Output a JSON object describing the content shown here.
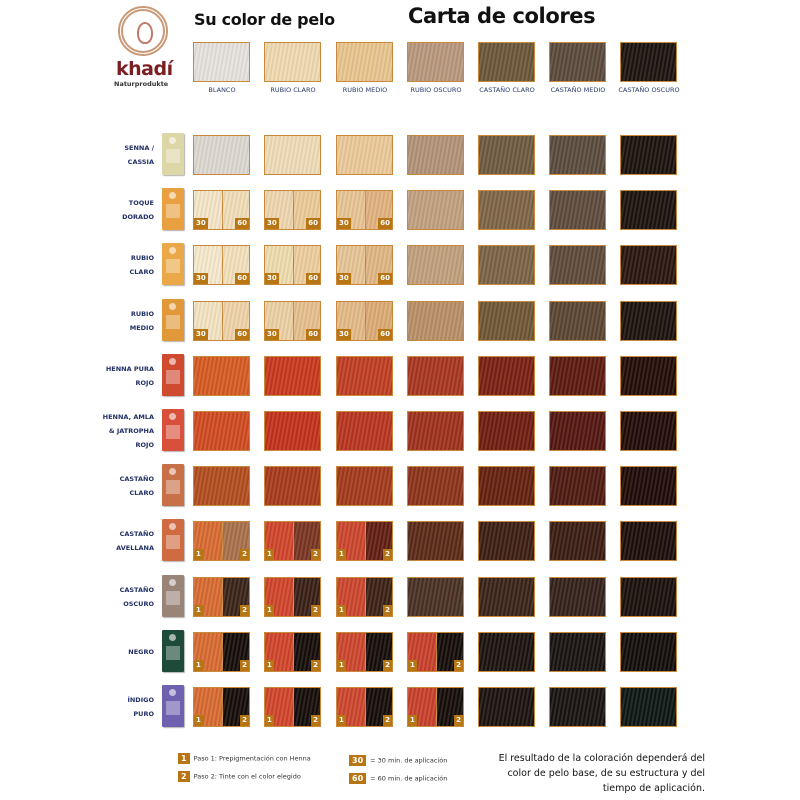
{
  "logo": {
    "brand": "khadí",
    "sub": "Naturprodukte",
    "ring_color": "#c99a78",
    "brand_color": "#7a1f22"
  },
  "titles": {
    "base": "Su color de pelo",
    "main": "Carta de colores"
  },
  "base_colors": [
    {
      "label": "BLANCO",
      "color": "#e6e2dc"
    },
    {
      "label": "RUBIO CLARO",
      "color": "#efd9b0"
    },
    {
      "label": "RUBIO MEDIO",
      "color": "#e9c58e"
    },
    {
      "label": "RUBIO OSCURO",
      "color": "#b8977c"
    },
    {
      "label": "CASTAÑO CLARO",
      "color": "#6b5638"
    },
    {
      "label": "CASTAÑO MEDIO",
      "color": "#5a4a3c"
    },
    {
      "label": "CASTAÑO OSCURO",
      "color": "#1b130e"
    }
  ],
  "rows": [
    {
      "label": [
        "SENNA /",
        "CASSIA"
      ],
      "box": "#ddd6a6",
      "cells": [
        {
          "c": "#ddd8d0"
        },
        {
          "c": "#efdcb8"
        },
        {
          "c": "#ecca9a"
        },
        {
          "c": "#b29278"
        },
        {
          "c": "#6e5a40"
        },
        {
          "c": "#5b4b3e"
        },
        {
          "c": "#1a120d"
        }
      ]
    },
    {
      "label": [
        "TOQUE",
        "DORADO"
      ],
      "box": "#e8a040",
      "cells": [
        {
          "s": [
            "#f5e6c8",
            "#f2ddb8"
          ],
          "m": [
            "30",
            "60"
          ]
        },
        {
          "s": [
            "#efd6ae",
            "#eccb98"
          ],
          "m": [
            "30",
            "60"
          ]
        },
        {
          "s": [
            "#e8c494",
            "#e2b27e"
          ],
          "m": [
            "30",
            "60"
          ]
        },
        {
          "c": "#c1a07e"
        },
        {
          "c": "#7e6446"
        },
        {
          "c": "#5e4b3c"
        },
        {
          "c": "#1b120d"
        }
      ]
    },
    {
      "label": [
        "RUBIO",
        "CLARO"
      ],
      "box": "#eaa848",
      "cells": [
        {
          "s": [
            "#f6e9cc",
            "#f3e0bc"
          ],
          "m": [
            "30",
            "60"
          ]
        },
        {
          "s": [
            "#efdcae",
            "#edcd9e"
          ],
          "m": [
            "30",
            "60"
          ]
        },
        {
          "s": [
            "#e7c596",
            "#e0b683"
          ],
          "m": [
            "30",
            "60"
          ]
        },
        {
          "c": "#c19f7c"
        },
        {
          "c": "#7a6346"
        },
        {
          "c": "#5e4a3a"
        },
        {
          "c": "#2a1510"
        }
      ]
    },
    {
      "label": [
        "RUBIO",
        "MEDIO"
      ],
      "box": "#e09838",
      "cells": [
        {
          "s": [
            "#f4e3c2",
            "#efd3a8"
          ],
          "m": [
            "30",
            "60"
          ]
        },
        {
          "s": [
            "#ecd0a3",
            "#e7c08d"
          ],
          "m": [
            "30",
            "60"
          ]
        },
        {
          "s": [
            "#e4ba87",
            "#dcaa74"
          ],
          "m": [
            "30",
            "60"
          ]
        },
        {
          "c": "#b88e66"
        },
        {
          "c": "#6f5636"
        },
        {
          "c": "#5b4532"
        },
        {
          "c": "#1b120d"
        }
      ]
    },
    {
      "label": [
        "HENNA PURA",
        "ROJO"
      ],
      "box": "#d04a30",
      "cells": [
        {
          "c": "#d65a22"
        },
        {
          "c": "#c8381c"
        },
        {
          "c": "#c03d22"
        },
        {
          "c": "#a8361f"
        },
        {
          "c": "#7a2012"
        },
        {
          "c": "#5c1a10"
        },
        {
          "c": "#240c08"
        }
      ]
    },
    {
      "label": [
        "HENNA, AMLA",
        "& JATROPHA",
        "ROJO"
      ],
      "box": "#d8503a",
      "cells": [
        {
          "c": "#d04a20"
        },
        {
          "c": "#c2301a"
        },
        {
          "c": "#b83420"
        },
        {
          "c": "#9e301c"
        },
        {
          "c": "#701c10"
        },
        {
          "c": "#541610"
        },
        {
          "c": "#220b08"
        }
      ]
    },
    {
      "label": [
        "CASTAÑO",
        "CLARO"
      ],
      "box": "#c87048",
      "cells": [
        {
          "c": "#b24d1e"
        },
        {
          "c": "#a83a1a"
        },
        {
          "c": "#a4391c"
        },
        {
          "c": "#8c3219"
        },
        {
          "c": "#64200f"
        },
        {
          "c": "#4e1a10"
        },
        {
          "c": "#200b08"
        }
      ]
    },
    {
      "label": [
        "CASTAÑO",
        "AVELLANA"
      ],
      "box": "#d06a40",
      "cells": [
        {
          "s": [
            "#d86a30",
            "#a8704a"
          ],
          "m": [
            "1",
            "2"
          ]
        },
        {
          "s": [
            "#d0442a",
            "#7a3522"
          ],
          "m": [
            "1",
            "2"
          ]
        },
        {
          "s": [
            "#cc452c",
            "#621e12"
          ],
          "m": [
            "1",
            "2"
          ]
        },
        {
          "c": "#5a2a16"
        },
        {
          "c": "#3e1e12"
        },
        {
          "c": "#3a1c12"
        },
        {
          "c": "#1c0e0a"
        }
      ]
    },
    {
      "label": [
        "CASTAÑO",
        "OSCURO"
      ],
      "box": "#9a8478",
      "cells": [
        {
          "s": [
            "#d86a30",
            "#3a2418"
          ],
          "m": [
            "1",
            "2"
          ]
        },
        {
          "s": [
            "#d0442a",
            "#3a2016"
          ],
          "m": [
            "1",
            "2"
          ]
        },
        {
          "s": [
            "#cc452c",
            "#3c2216"
          ],
          "m": [
            "1",
            "2"
          ]
        },
        {
          "c": "#4a3024"
        },
        {
          "c": "#3a2418"
        },
        {
          "c": "#34221a"
        },
        {
          "c": "#1a100c"
        }
      ]
    },
    {
      "label": [
        "NEGRO"
      ],
      "box": "#1e4a3a",
      "cells": [
        {
          "s": [
            "#d86a30",
            "#140c08"
          ],
          "m": [
            "1",
            "2"
          ]
        },
        {
          "s": [
            "#d0442a",
            "#140c08"
          ],
          "m": [
            "1",
            "2"
          ]
        },
        {
          "s": [
            "#cc452c",
            "#140c08"
          ],
          "m": [
            "1",
            "2"
          ]
        },
        {
          "s": [
            "#c8402a",
            "#140c08"
          ],
          "m": [
            "1",
            "2"
          ]
        },
        {
          "c": "#1a120e"
        },
        {
          "c": "#181210"
        },
        {
          "c": "#120c0a"
        }
      ]
    },
    {
      "label": [
        "ÍNDIGO",
        "PURO"
      ],
      "box": "#7060b0",
      "cells": [
        {
          "s": [
            "#d86a30",
            "#140c08"
          ],
          "m": [
            "1",
            "2"
          ]
        },
        {
          "s": [
            "#d0442a",
            "#140c08"
          ],
          "m": [
            "1",
            "2"
          ]
        },
        {
          "s": [
            "#cc452c",
            "#140c08"
          ],
          "m": [
            "1",
            "2"
          ]
        },
        {
          "s": [
            "#c8402a",
            "#140c08"
          ],
          "m": [
            "1",
            "2"
          ]
        },
        {
          "c": "#1a120e"
        },
        {
          "c": "#181210"
        },
        {
          "c": "#0e1614"
        }
      ]
    }
  ],
  "legend": {
    "step1_mark": "1",
    "step1": "Paso 1: Prepigmentación con Henna",
    "step2_mark": "2",
    "step2": "Paso 2: Tinte con el color elegido",
    "t30_mark": "30",
    "t30": "= 30 min. de aplicación",
    "t60_mark": "60",
    "t60": "= 60 min. de aplicación",
    "mark_color": "#b87514"
  },
  "note": [
    "El resultado de la coloración dependerá del",
    "color de pelo base, de su estructura y del",
    "tiempo de aplicación."
  ]
}
